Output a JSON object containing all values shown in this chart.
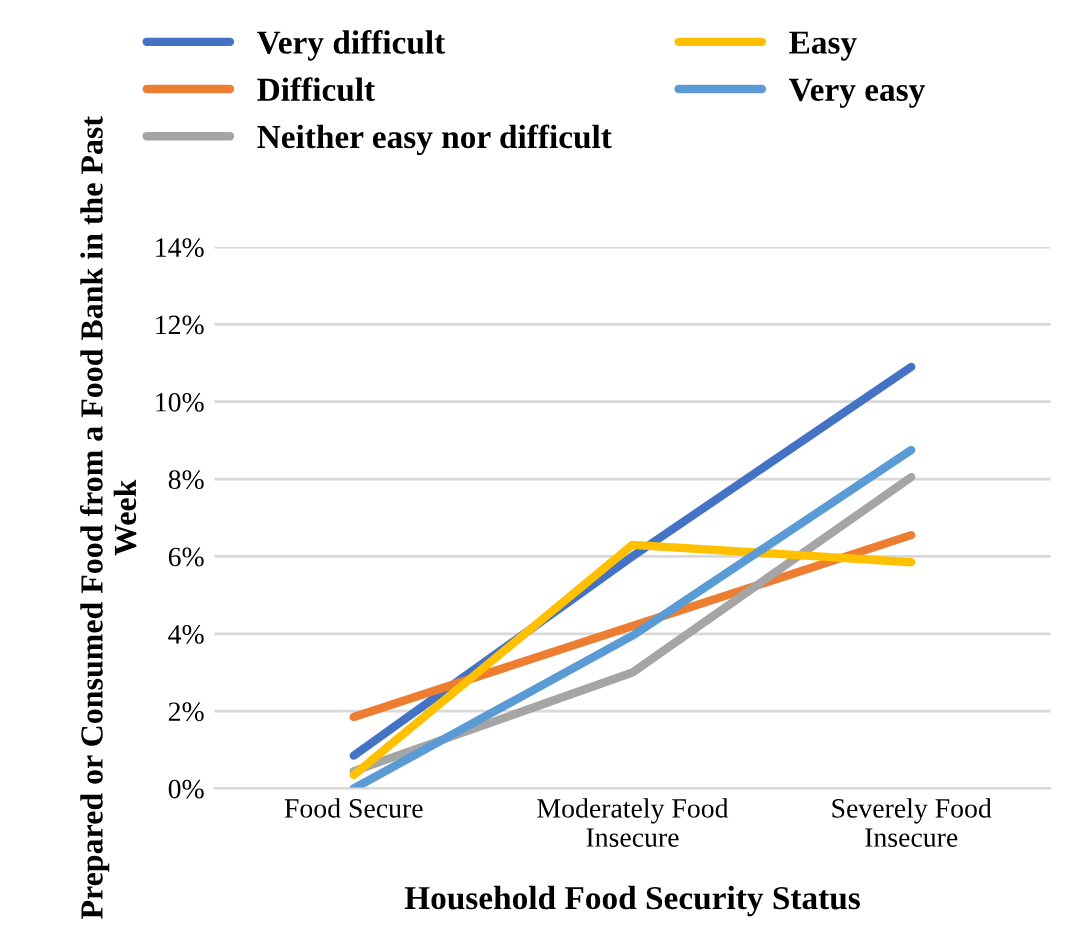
{
  "chart_data": {
    "type": "line",
    "xlabel": "Household Food Security Status",
    "ylabel": "Prepared or Consumed Food from a Food Bank in the Past Week",
    "categories": [
      "Food Secure",
      "Moderately Food Insecure",
      "Severely Food Insecure"
    ],
    "series": [
      {
        "name": "Very difficult",
        "color": "#4472c4",
        "values": [
          0.85,
          6.0,
          10.9
        ]
      },
      {
        "name": "Difficult",
        "color": "#ed7d31",
        "values": [
          1.85,
          4.2,
          6.55
        ]
      },
      {
        "name": "Neither easy nor difficult",
        "color": "#a5a5a5",
        "values": [
          0.45,
          3.0,
          8.05
        ]
      },
      {
        "name": "Easy",
        "color": "#ffc000",
        "values": [
          0.35,
          6.3,
          5.85
        ]
      },
      {
        "name": "Very easy",
        "color": "#5b9bd5",
        "values": [
          0.0,
          3.95,
          8.75
        ]
      }
    ],
    "ylim": [
      0,
      14
    ],
    "yticks": [
      {
        "value": 0,
        "label": "0%"
      },
      {
        "value": 2,
        "label": "2%"
      },
      {
        "value": 4,
        "label": "4%"
      },
      {
        "value": 6,
        "label": "6%"
      },
      {
        "value": 8,
        "label": "8%"
      },
      {
        "value": 10,
        "label": "10%"
      },
      {
        "value": 12,
        "label": "12%"
      },
      {
        "value": 14,
        "label": "14%"
      }
    ],
    "grid": "y",
    "legend": "top",
    "marker": "none",
    "line_style": "solid"
  }
}
